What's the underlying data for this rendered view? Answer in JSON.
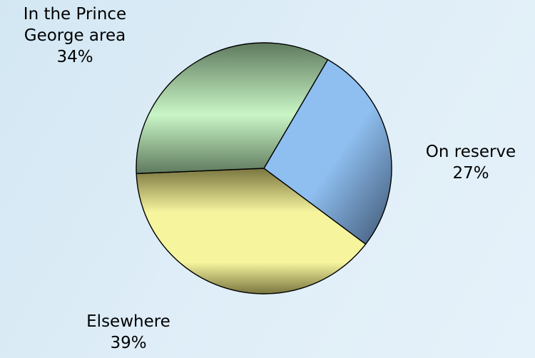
{
  "chart_data": {
    "type": "pie",
    "slices": [
      {
        "name": "On reserve",
        "value": 27,
        "label": "27%",
        "color": "#8fbff0",
        "shade": "#3e5572"
      },
      {
        "name": "Elsewhere",
        "value": 39,
        "label": "39%",
        "color": "#f6f59e",
        "shade": "#7a7640"
      },
      {
        "name": "In the Prince George area",
        "value": 34,
        "label": "34%",
        "color": "#c9f6c6",
        "shade": "#5f7a5e"
      }
    ],
    "label_lines": {
      "reserve": [
        "On reserve",
        "27%"
      ],
      "elsewhere": [
        "Elsewhere",
        "39%"
      ],
      "pg": [
        "In the Prince",
        "George area",
        "34%"
      ]
    },
    "start_angle_deg": 30,
    "direction": "clockwise",
    "legend": "none"
  }
}
